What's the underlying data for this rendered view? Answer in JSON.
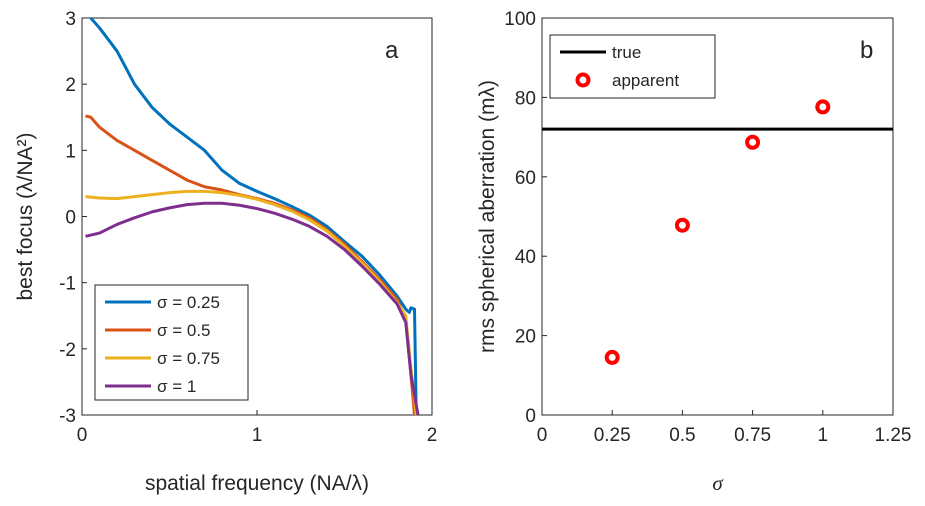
{
  "chart_data": [
    {
      "type": "line",
      "annotation": "a",
      "xlabel": "spatial frequency (NA/λ)",
      "ylabel": "best focus (λ/NA²)",
      "xlim": [
        0,
        2
      ],
      "ylim": [
        -3,
        3
      ],
      "xticks": [
        0,
        1,
        2
      ],
      "yticks": [
        -3,
        -2,
        -1,
        0,
        1,
        2,
        3
      ],
      "legend": "lower left",
      "series": [
        {
          "name": "σ = 0.25",
          "color": "#0072bd",
          "style": "line",
          "x": [
            0.05,
            0.1,
            0.2,
            0.3,
            0.4,
            0.5,
            0.6,
            0.7,
            0.8,
            0.9,
            1.0,
            1.1,
            1.2,
            1.3,
            1.4,
            1.5,
            1.6,
            1.7,
            1.8,
            1.85,
            1.87,
            1.88,
            1.9,
            1.91
          ],
          "values": [
            3.0,
            2.85,
            2.5,
            2.0,
            1.65,
            1.4,
            1.2,
            1.0,
            0.7,
            0.5,
            0.38,
            0.27,
            0.15,
            0.02,
            -0.15,
            -0.38,
            -0.6,
            -0.88,
            -1.2,
            -1.4,
            -1.45,
            -1.38,
            -1.4,
            -3.0
          ]
        },
        {
          "name": "σ = 0.5",
          "color": "#d95319",
          "style": "line",
          "x": [
            0.02,
            0.05,
            0.1,
            0.2,
            0.3,
            0.4,
            0.5,
            0.6,
            0.7,
            0.8,
            0.9,
            1.0,
            1.1,
            1.2,
            1.3,
            1.4,
            1.5,
            1.6,
            1.7,
            1.8,
            1.85,
            1.88,
            1.9
          ],
          "values": [
            1.52,
            1.5,
            1.35,
            1.15,
            1.0,
            0.85,
            0.7,
            0.55,
            0.45,
            0.4,
            0.33,
            0.27,
            0.2,
            0.1,
            -0.02,
            -0.2,
            -0.42,
            -0.68,
            -0.95,
            -1.25,
            -1.55,
            -2.4,
            -3.0
          ]
        },
        {
          "name": "σ = 0.75",
          "color": "#edb120",
          "style": "line",
          "x": [
            0.02,
            0.1,
            0.2,
            0.3,
            0.4,
            0.5,
            0.6,
            0.7,
            0.8,
            0.9,
            1.0,
            1.1,
            1.2,
            1.3,
            1.4,
            1.5,
            1.6,
            1.7,
            1.8,
            1.85,
            1.88,
            1.91
          ],
          "values": [
            0.3,
            0.28,
            0.27,
            0.3,
            0.33,
            0.36,
            0.38,
            0.38,
            0.36,
            0.32,
            0.26,
            0.18,
            0.08,
            -0.05,
            -0.22,
            -0.45,
            -0.7,
            -0.98,
            -1.3,
            -1.5,
            -2.3,
            -3.0
          ]
        },
        {
          "name": "σ = 1",
          "color": "#7e2f8e",
          "style": "line",
          "x": [
            0.02,
            0.1,
            0.2,
            0.3,
            0.4,
            0.5,
            0.6,
            0.7,
            0.8,
            0.9,
            1.0,
            1.1,
            1.2,
            1.3,
            1.4,
            1.5,
            1.6,
            1.7,
            1.8,
            1.85,
            1.88,
            1.92
          ],
          "values": [
            -0.3,
            -0.25,
            -0.12,
            -0.02,
            0.07,
            0.13,
            0.18,
            0.2,
            0.2,
            0.17,
            0.12,
            0.05,
            -0.04,
            -0.15,
            -0.3,
            -0.5,
            -0.75,
            -1.02,
            -1.32,
            -1.6,
            -2.4,
            -3.0
          ]
        }
      ]
    },
    {
      "type": "scatter",
      "annotation": "b",
      "xlabel": "σ",
      "ylabel": "rms spherical aberration (mλ)",
      "xlim": [
        0,
        1.25
      ],
      "ylim": [
        0,
        100
      ],
      "xticks": [
        0,
        0.25,
        0.5,
        0.75,
        1,
        1.25
      ],
      "yticks": [
        0,
        20,
        40,
        60,
        80,
        100
      ],
      "legend": "upper left",
      "series": [
        {
          "name": "true",
          "color": "#000000",
          "style": "line",
          "x": [
            0,
            1.25
          ],
          "values": [
            72,
            72
          ]
        },
        {
          "name": "apparent",
          "color": "#ff0000",
          "style": "marker",
          "x": [
            0.25,
            0.5,
            0.75,
            1
          ],
          "values": [
            14.5,
            47.8,
            68.7,
            77.6
          ]
        }
      ]
    }
  ]
}
